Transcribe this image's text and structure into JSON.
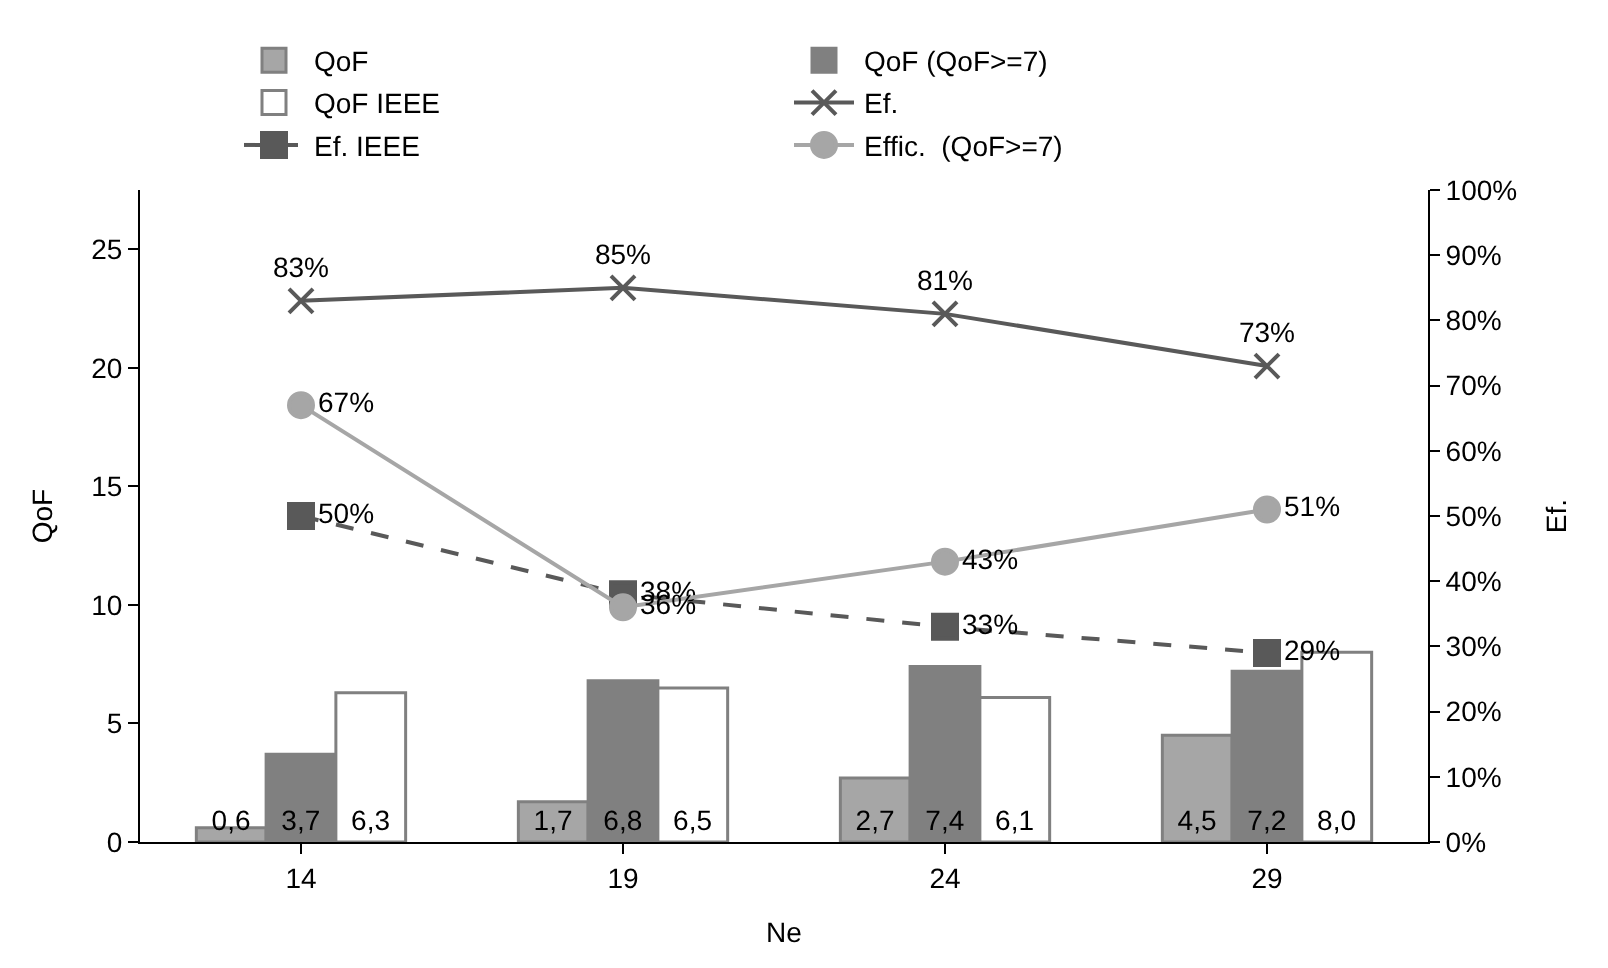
{
  "chart_data": {
    "type": "bar",
    "categories": [
      "14",
      "19",
      "24",
      "29"
    ],
    "xlabel": "Ne",
    "ylabel": "QoF",
    "y2label": "Ef.",
    "ylim": [
      0,
      27.5
    ],
    "yticks": [
      0,
      5,
      10,
      15,
      20,
      25
    ],
    "y2lim": [
      0,
      100
    ],
    "y2ticks": [
      {
        "value": 0,
        "label": "0%"
      },
      {
        "value": 10,
        "label": "10%"
      },
      {
        "value": 20,
        "label": "20%"
      },
      {
        "value": 30,
        "label": "30%"
      },
      {
        "value": 40,
        "label": "40%"
      },
      {
        "value": 50,
        "label": "50%"
      },
      {
        "value": 60,
        "label": "60%"
      },
      {
        "value": 70,
        "label": "70%"
      },
      {
        "value": 80,
        "label": "80%"
      },
      {
        "value": 90,
        "label": "90%"
      },
      {
        "value": 100,
        "label": "100%"
      }
    ],
    "legend": "top",
    "series": [
      {
        "name": "QoF",
        "color": "#a6a6a6",
        "values": [
          0.6,
          1.7,
          2.7,
          4.5
        ],
        "value_labels": [
          "0,6",
          "1,7",
          "2,7",
          "4,5"
        ]
      },
      {
        "name": "QoF (QoF>=7)",
        "color": "#808080",
        "values": [
          3.7,
          6.8,
          7.4,
          7.2
        ],
        "value_labels": [
          "3,7",
          "6,8",
          "7,4",
          "7,2"
        ]
      },
      {
        "name": "QoF IEEE",
        "color": "#ffffff",
        "values": [
          6.3,
          6.5,
          6.1,
          8.0
        ],
        "value_labels": [
          "6,3",
          "6,5",
          "6,1",
          "8,0"
        ]
      },
      {
        "name": "Ef.",
        "type": "line",
        "axis": "y2",
        "color": "#595959",
        "marker": "cross",
        "line_style": "solid",
        "values": [
          83,
          85,
          81,
          73
        ],
        "value_labels": [
          "83%",
          "85%",
          "81%",
          "73%"
        ]
      },
      {
        "name": "Ef. IEEE",
        "type": "line",
        "axis": "y2",
        "color": "#595959",
        "marker": "square",
        "line_style": "dashed",
        "values": [
          50,
          38,
          33,
          29
        ],
        "value_labels": [
          "50%",
          "38%",
          "33%",
          "29%"
        ]
      },
      {
        "name": "Effic.  (QoF>=7)",
        "type": "line",
        "axis": "y2",
        "color": "#a6a6a6",
        "marker": "circle",
        "line_style": "solid",
        "values": [
          67,
          36,
          43,
          51
        ],
        "value_labels": [
          "67%",
          "36%",
          "43%",
          "51%"
        ]
      }
    ]
  }
}
